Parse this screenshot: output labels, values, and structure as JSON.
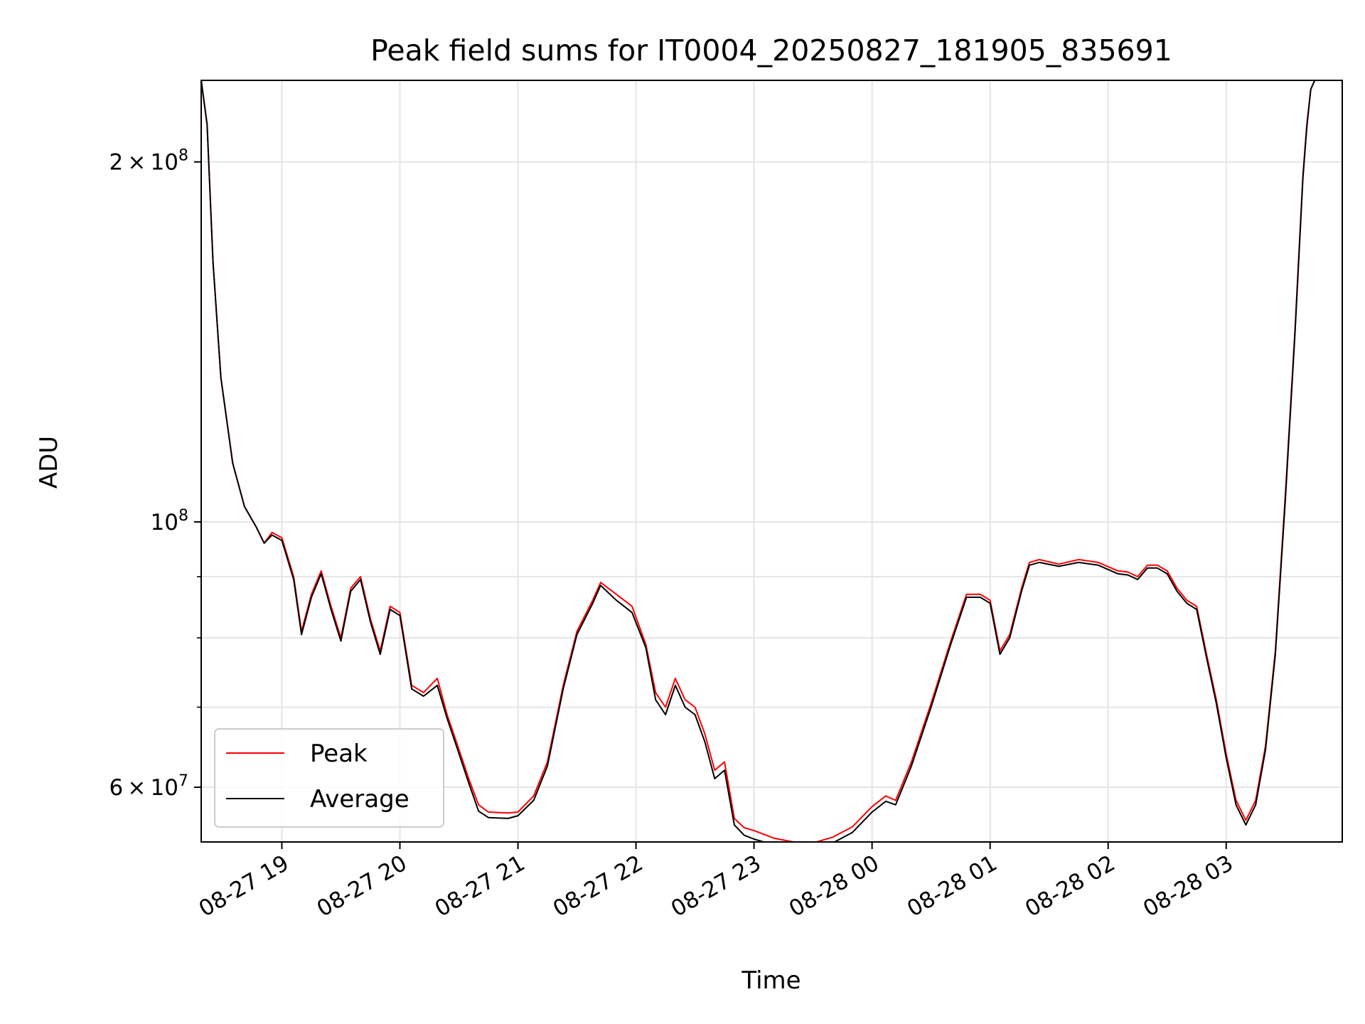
{
  "chart_data": {
    "type": "line",
    "title": "Peak field sums for IT0004_20250827_181905_835691",
    "xlabel": "Time",
    "ylabel": "ADU",
    "yscale": "log",
    "ylim": [
      54000000,
      234000000
    ],
    "xlim": [
      "2025-08-27 18:19",
      "2025-08-28 03:59"
    ],
    "grid": true,
    "legend_position": "lower-left",
    "x_ticks": [
      "08-27 19",
      "08-27 20",
      "08-27 21",
      "08-27 22",
      "08-27 23",
      "08-28 00",
      "08-28 01",
      "08-28 02",
      "08-28 03"
    ],
    "y_ticks": [
      {
        "value": 60000000,
        "label": "6 × 10^7"
      },
      {
        "value": 100000000,
        "label": "10^8"
      },
      {
        "value": 200000000,
        "label": "2 × 10^8"
      }
    ],
    "y_minor_ticks": [
      70000000,
      80000000,
      90000000
    ],
    "colors": {
      "Peak": "#ff0000",
      "Average": "#000000",
      "grid": "#e5e5e5"
    },
    "x": [
      "2025-08-27 18:19",
      "2025-08-27 18:22",
      "2025-08-27 18:25",
      "2025-08-27 18:29",
      "2025-08-27 18:35",
      "2025-08-27 18:41",
      "2025-08-27 18:47",
      "2025-08-27 18:51",
      "2025-08-27 18:55",
      "2025-08-27 19:00",
      "2025-08-27 19:06",
      "2025-08-27 19:10",
      "2025-08-27 19:15",
      "2025-08-27 19:20",
      "2025-08-27 19:25",
      "2025-08-27 19:30",
      "2025-08-27 19:35",
      "2025-08-27 19:40",
      "2025-08-27 19:45",
      "2025-08-27 19:50",
      "2025-08-27 19:55",
      "2025-08-27 20:00",
      "2025-08-27 20:06",
      "2025-08-27 20:12",
      "2025-08-27 20:19",
      "2025-08-27 20:24",
      "2025-08-27 20:28",
      "2025-08-27 20:35",
      "2025-08-27 20:40",
      "2025-08-27 20:45",
      "2025-08-27 20:55",
      "2025-08-27 21:00",
      "2025-08-27 21:08",
      "2025-08-27 21:15",
      "2025-08-27 21:23",
      "2025-08-27 21:30",
      "2025-08-27 21:38",
      "2025-08-27 21:42",
      "2025-08-27 21:50",
      "2025-08-27 21:58",
      "2025-08-27 22:05",
      "2025-08-27 22:10",
      "2025-08-27 22:15",
      "2025-08-27 22:20",
      "2025-08-27 22:25",
      "2025-08-27 22:30",
      "2025-08-27 22:35",
      "2025-08-27 22:40",
      "2025-08-27 22:45",
      "2025-08-27 22:50",
      "2025-08-27 22:55",
      "2025-08-27 23:00",
      "2025-08-27 23:10",
      "2025-08-27 23:20",
      "2025-08-27 23:30",
      "2025-08-27 23:40",
      "2025-08-27 23:50",
      "2025-08-28 00:00",
      "2025-08-28 00:07",
      "2025-08-28 00:12",
      "2025-08-28 00:20",
      "2025-08-28 00:30",
      "2025-08-28 00:40",
      "2025-08-28 00:48",
      "2025-08-28 00:55",
      "2025-08-28 01:00",
      "2025-08-28 01:05",
      "2025-08-28 01:10",
      "2025-08-28 01:16",
      "2025-08-28 01:20",
      "2025-08-28 01:25",
      "2025-08-28 01:35",
      "2025-08-28 01:45",
      "2025-08-28 01:55",
      "2025-08-28 02:05",
      "2025-08-28 02:10",
      "2025-08-28 02:15",
      "2025-08-28 02:20",
      "2025-08-28 02:25",
      "2025-08-28 02:30",
      "2025-08-28 02:35",
      "2025-08-28 02:40",
      "2025-08-28 02:45",
      "2025-08-28 02:50",
      "2025-08-28 02:55",
      "2025-08-28 03:00",
      "2025-08-28 03:05",
      "2025-08-28 03:10",
      "2025-08-28 03:15",
      "2025-08-28 03:20",
      "2025-08-28 03:25",
      "2025-08-28 03:30",
      "2025-08-28 03:35",
      "2025-08-28 03:39",
      "2025-08-28 03:41",
      "2025-08-28 03:43",
      "2025-08-28 03:45"
    ],
    "series": [
      {
        "name": "Peak",
        "values": [
          234000000,
          215000000,
          165000000,
          132000000,
          112000000,
          103000000,
          99000000,
          96000000,
          98000000,
          97000000,
          90000000,
          81000000,
          87000000,
          91000000,
          85000000,
          80000000,
          88000000,
          90000000,
          83000000,
          78000000,
          85000000,
          84000000,
          73000000,
          72000000,
          74000000,
          69000000,
          66000000,
          61000000,
          58000000,
          57200000,
          57100000,
          57200000,
          59000000,
          63000000,
          73000000,
          81000000,
          86000000,
          89000000,
          87000000,
          85000000,
          79000000,
          72000000,
          70000000,
          74000000,
          71000000,
          70000000,
          66500000,
          62000000,
          63000000,
          56500000,
          55500000,
          55200000,
          54400000,
          54000000,
          53900000,
          54500000,
          55600000,
          57800000,
          59000000,
          58500000,
          63000000,
          70500000,
          79500000,
          87000000,
          87000000,
          86000000,
          78000000,
          80500000,
          88000000,
          92500000,
          93000000,
          92200000,
          93000000,
          92500000,
          91000000,
          90800000,
          90000000,
          92000000,
          92000000,
          91000000,
          88000000,
          86000000,
          85000000,
          77500000,
          71000000,
          64000000,
          58500000,
          56300000,
          58500000,
          65000000,
          78000000,
          105000000,
          145000000,
          195000000,
          215000000,
          230000000,
          234000000
        ]
      },
      {
        "name": "Average",
        "values": [
          234000000,
          215000000,
          165000000,
          132000000,
          112000000,
          103000000,
          99000000,
          96000000,
          97500000,
          96500000,
          89500000,
          80500000,
          86500000,
          90500000,
          84500000,
          79500000,
          87500000,
          89500000,
          82500000,
          77500000,
          84500000,
          83500000,
          72500000,
          71500000,
          73000000,
          68500000,
          65500000,
          60500000,
          57300000,
          56600000,
          56500000,
          56800000,
          58500000,
          62500000,
          72500000,
          80500000,
          85500000,
          88500000,
          86000000,
          84000000,
          78500000,
          71000000,
          69000000,
          73000000,
          70000000,
          69000000,
          65500000,
          61000000,
          62000000,
          55800000,
          54700000,
          54300000,
          53700000,
          53300000,
          53300000,
          53900000,
          55000000,
          57200000,
          58400000,
          58000000,
          62500000,
          70000000,
          79000000,
          86500000,
          86500000,
          85500000,
          77500000,
          80000000,
          87500000,
          92000000,
          92500000,
          91800000,
          92500000,
          92000000,
          90500000,
          90300000,
          89500000,
          91500000,
          91500000,
          90500000,
          87500000,
          85500000,
          84500000,
          77000000,
          70500000,
          63500000,
          58000000,
          55800000,
          58000000,
          64500000,
          77500000,
          104000000,
          144000000,
          194000000,
          214000000,
          230000000,
          234000000
        ]
      }
    ]
  }
}
